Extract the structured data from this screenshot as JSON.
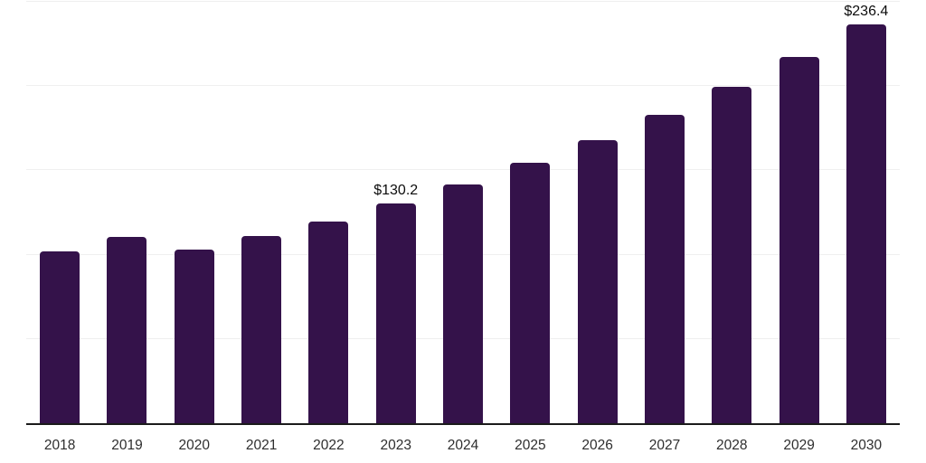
{
  "chart_data": {
    "type": "bar",
    "title": "",
    "xlabel": "",
    "ylabel": "",
    "categories": [
      "2018",
      "2019",
      "2020",
      "2021",
      "2022",
      "2023",
      "2024",
      "2025",
      "2026",
      "2027",
      "2028",
      "2029",
      "2030"
    ],
    "values": [
      102.0,
      110.7,
      103.2,
      111.3,
      119.6,
      130.2,
      141.8,
      154.4,
      168.1,
      183.1,
      199.4,
      217.2,
      236.4
    ],
    "data_labels": [
      "",
      "",
      "",
      "",
      "",
      "$130.2",
      "",
      "",
      "",
      "",
      "",
      "",
      "$236.4"
    ],
    "ylim": [
      0,
      250
    ],
    "gridline_values": [
      50,
      100,
      150,
      200,
      250
    ],
    "grid": true,
    "legend": false,
    "colors": {
      "bar": "#34124a",
      "axis_line": "#1b1b1b",
      "gridline": "#efefef",
      "value_label": "#0d0d0d",
      "tick_label": "#2e2e2e",
      "background": "#ffffff"
    }
  }
}
